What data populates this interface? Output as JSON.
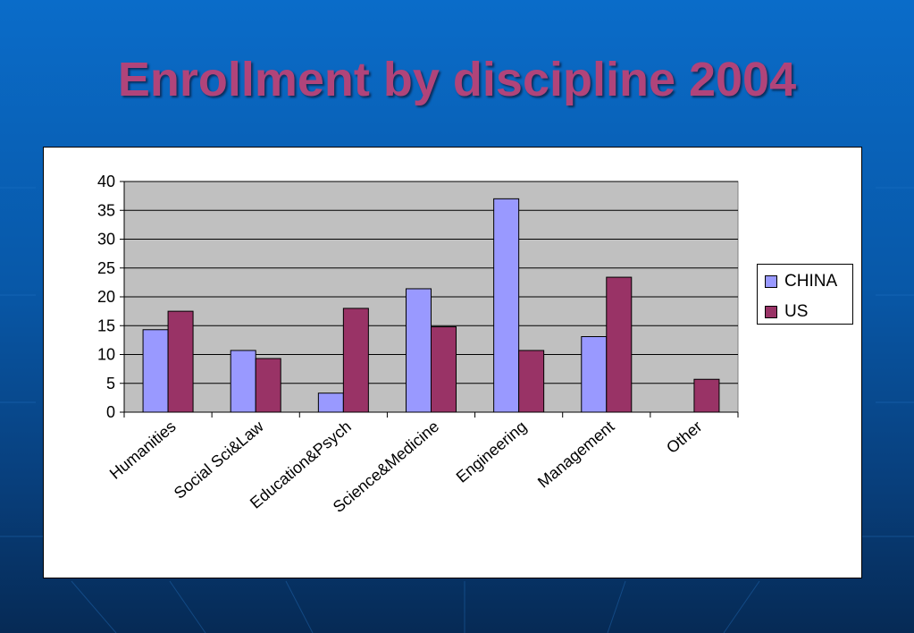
{
  "slide": {
    "title": "Enrollment by discipline 2004"
  },
  "colors": {
    "background": "#0858a8",
    "title": "#b0447a",
    "plot_area": "#c0c0c0",
    "china": "#9999ff",
    "us": "#993366"
  },
  "chart_data": {
    "type": "bar",
    "title": "",
    "xlabel": "",
    "ylabel": "",
    "ylim": [
      0,
      40
    ],
    "yticks": [
      0,
      5,
      10,
      15,
      20,
      25,
      30,
      35,
      40
    ],
    "grid": true,
    "legend_position": "right",
    "categories": [
      "Humanities",
      "Social Sci&Law",
      "Education&Psych",
      "Science&Medicine",
      "Engineering",
      "Management",
      "Other"
    ],
    "series": [
      {
        "name": "CHINA",
        "color": "#9999ff",
        "values": [
          14.3,
          10.7,
          3.3,
          21.4,
          37.0,
          13.1,
          0
        ]
      },
      {
        "name": "US",
        "color": "#993366",
        "values": [
          17.5,
          9.3,
          18.0,
          14.8,
          10.7,
          23.4,
          5.7
        ]
      }
    ]
  }
}
